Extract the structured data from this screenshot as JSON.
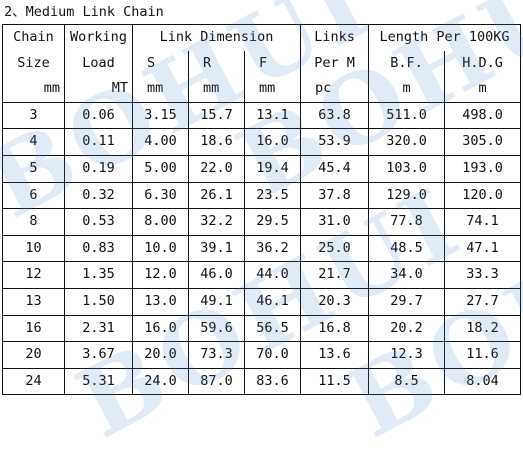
{
  "caption": "2、Medium Link Chain",
  "watermark_text": "BOHUI",
  "header": {
    "chain": "Chain",
    "size": "Size",
    "size_unit": "mm",
    "working": "Working",
    "load": "Load",
    "load_unit": "MT",
    "link_dimension": "Link  Dimension",
    "s": "S",
    "s_unit": "mm",
    "r": "R",
    "r_unit": "mm",
    "f": "F",
    "f_unit": "mm",
    "links": "Links",
    "per_m": "Per M",
    "links_unit": "pc",
    "length_group": "Length  Per 100KG",
    "bf": "B.F.",
    "bf_unit": "m",
    "hdg": "H.D.G",
    "hdg_unit": "m"
  },
  "rows": [
    {
      "size": "3",
      "load": "0.06",
      "s": "3.15",
      "r": "15.7",
      "f": "13.1",
      "links": "63.8",
      "bf": "511.0",
      "hdg": "498.0"
    },
    {
      "size": "4",
      "load": "0.11",
      "s": "4.00",
      "r": "18.6",
      "f": "16.0",
      "links": "53.9",
      "bf": "320.0",
      "hdg": "305.0"
    },
    {
      "size": "5",
      "load": "0.19",
      "s": "5.00",
      "r": "22.0",
      "f": "19.4",
      "links": "45.4",
      "bf": "103.0",
      "hdg": "193.0"
    },
    {
      "size": "6",
      "load": "0.32",
      "s": "6.30",
      "r": "26.1",
      "f": "23.5",
      "links": "37.8",
      "bf": "129.0",
      "hdg": "120.0"
    },
    {
      "size": "8",
      "load": "0.53",
      "s": "8.00",
      "r": "32.2",
      "f": "29.5",
      "links": "31.0",
      "bf": "77.8",
      "hdg": "74.1"
    },
    {
      "size": "10",
      "load": "0.83",
      "s": "10.0",
      "r": "39.1",
      "f": "36.2",
      "links": "25.0",
      "bf": "48.5",
      "hdg": "47.1"
    },
    {
      "size": "12",
      "load": "1.35",
      "s": "12.0",
      "r": "46.0",
      "f": "44.0",
      "links": "21.7",
      "bf": "34.0",
      "hdg": "33.3"
    },
    {
      "size": "13",
      "load": "1.50",
      "s": "13.0",
      "r": "49.1",
      "f": "46.1",
      "links": "20.3",
      "bf": "29.7",
      "hdg": "27.7"
    },
    {
      "size": "16",
      "load": "2.31",
      "s": "16.0",
      "r": "59.6",
      "f": "56.5",
      "links": "16.8",
      "bf": "20.2",
      "hdg": "18.2"
    },
    {
      "size": "20",
      "load": "3.67",
      "s": "20.0",
      "r": "73.3",
      "f": "70.0",
      "links": "13.6",
      "bf": "12.3",
      "hdg": "11.6"
    },
    {
      "size": "24",
      "load": "5.31",
      "s": "24.0",
      "r": "87.0",
      "f": "83.6",
      "links": "11.5",
      "bf": "8.5",
      "hdg": "8.04"
    }
  ]
}
